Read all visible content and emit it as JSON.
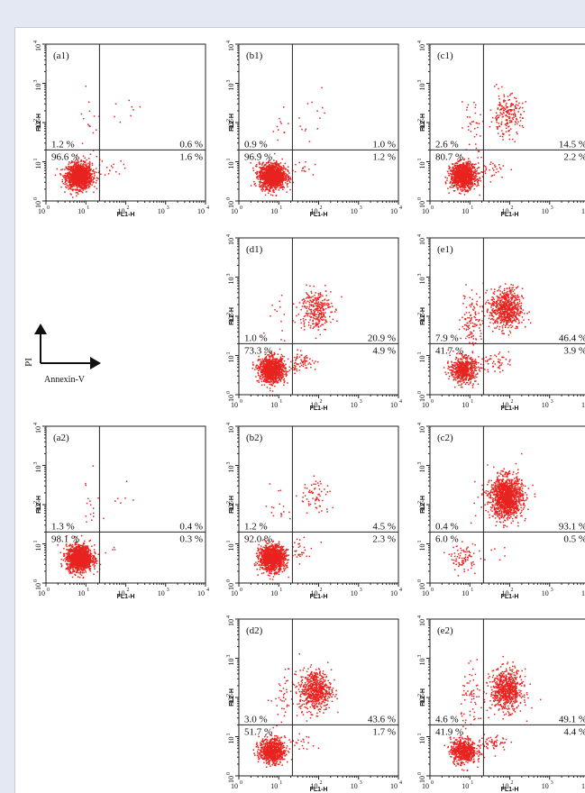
{
  "figure": {
    "x_axis_label": "FL1-H",
    "y_axis_label": "FL2-H",
    "tick_labels": [
      "10",
      "10",
      "10",
      "10",
      "10"
    ],
    "tick_exponents": [
      "0",
      "1",
      "2",
      "3",
      "4"
    ],
    "legend": {
      "y_label": "PI",
      "x_label": "Annexin-V"
    }
  },
  "chart_data": [
    {
      "type": "scatter",
      "title": "(a1)",
      "xlabel": "FL1-H",
      "ylabel": "FL2-H",
      "x_scale": "log",
      "y_scale": "log",
      "xlim": [
        1,
        10000
      ],
      "ylim": [
        1,
        10000
      ],
      "quadrant_gate": [
        22,
        20
      ],
      "quadrant_percentages": {
        "upper_left": "1.2 %",
        "upper_right": "0.6 %",
        "lower_left": "96.6 %",
        "lower_right": "1.6 %"
      },
      "point_color": "#e8231f"
    },
    {
      "type": "scatter",
      "title": "(b1)",
      "xlabel": "FL1-H",
      "ylabel": "FL2-H",
      "x_scale": "log",
      "y_scale": "log",
      "xlim": [
        1,
        10000
      ],
      "ylim": [
        1,
        10000
      ],
      "quadrant_gate": [
        22,
        20
      ],
      "quadrant_percentages": {
        "upper_left": "0.9 %",
        "upper_right": "1.0 %",
        "lower_left": "96.9 %",
        "lower_right": "1.2 %"
      },
      "point_color": "#e8231f"
    },
    {
      "type": "scatter",
      "title": "(c1)",
      "xlabel": "FL1-H",
      "ylabel": "FL2-H",
      "x_scale": "log",
      "y_scale": "log",
      "xlim": [
        1,
        10000
      ],
      "ylim": [
        1,
        10000
      ],
      "quadrant_gate": [
        22,
        20
      ],
      "quadrant_percentages": {
        "upper_left": "2.6 %",
        "upper_right": "14.5 %",
        "lower_left": "80.7 %",
        "lower_right": "2.2 %"
      },
      "point_color": "#e8231f"
    },
    {
      "type": "scatter",
      "title": "(d1)",
      "xlabel": "FL1-H",
      "ylabel": "FL2-H",
      "x_scale": "log",
      "y_scale": "log",
      "xlim": [
        1,
        10000
      ],
      "ylim": [
        1,
        10000
      ],
      "quadrant_gate": [
        22,
        20
      ],
      "quadrant_percentages": {
        "upper_left": "1.0 %",
        "upper_right": "20.9 %",
        "lower_left": "73.3 %",
        "lower_right": "4.9 %"
      },
      "point_color": "#e8231f"
    },
    {
      "type": "scatter",
      "title": "(e1)",
      "xlabel": "FL1-H",
      "ylabel": "FL2-H",
      "x_scale": "log",
      "y_scale": "log",
      "xlim": [
        1,
        10000
      ],
      "ylim": [
        1,
        10000
      ],
      "quadrant_gate": [
        22,
        20
      ],
      "quadrant_percentages": {
        "upper_left": "7.9 %",
        "upper_right": "46.4 %",
        "lower_left": "41.7 %",
        "lower_right": "3.9 %"
      },
      "point_color": "#e8231f"
    },
    {
      "type": "scatter",
      "title": "(a2)",
      "xlabel": "FL1-H",
      "ylabel": "FL2-H",
      "x_scale": "log",
      "y_scale": "log",
      "xlim": [
        1,
        10000
      ],
      "ylim": [
        1,
        10000
      ],
      "quadrant_gate": [
        22,
        20
      ],
      "quadrant_percentages": {
        "upper_left": "1.3 %",
        "upper_right": "0.4 %",
        "lower_left": "98.1 %",
        "lower_right": "0.3 %"
      },
      "point_color": "#e8231f"
    },
    {
      "type": "scatter",
      "title": "(b2)",
      "xlabel": "FL1-H",
      "ylabel": "FL2-H",
      "x_scale": "log",
      "y_scale": "log",
      "xlim": [
        1,
        10000
      ],
      "ylim": [
        1,
        10000
      ],
      "quadrant_gate": [
        22,
        20
      ],
      "quadrant_percentages": {
        "upper_left": "1.2 %",
        "upper_right": "4.5 %",
        "lower_left": "92.0 %",
        "lower_right": "2.3 %"
      },
      "point_color": "#e8231f"
    },
    {
      "type": "scatter",
      "title": "(c2)",
      "xlabel": "FL1-H",
      "ylabel": "FL2-H",
      "x_scale": "log",
      "y_scale": "log",
      "xlim": [
        1,
        10000
      ],
      "ylim": [
        1,
        10000
      ],
      "quadrant_gate": [
        22,
        20
      ],
      "quadrant_percentages": {
        "upper_left": "0.4 %",
        "upper_right": "93.1 %",
        "lower_left": "6.0 %",
        "lower_right": "0.5 %"
      },
      "point_color": "#e8231f"
    },
    {
      "type": "scatter",
      "title": "(d2)",
      "xlabel": "FL1-H",
      "ylabel": "FL2-H",
      "x_scale": "log",
      "y_scale": "log",
      "xlim": [
        1,
        10000
      ],
      "ylim": [
        1,
        10000
      ],
      "quadrant_gate": [
        22,
        20
      ],
      "quadrant_percentages": {
        "upper_left": "3.0 %",
        "upper_right": "43.6 %",
        "lower_left": "51.7 %",
        "lower_right": "1.7 %"
      },
      "point_color": "#e8231f"
    },
    {
      "type": "scatter",
      "title": "(e2)",
      "xlabel": "FL1-H",
      "ylabel": "FL2-H",
      "x_scale": "log",
      "y_scale": "log",
      "xlim": [
        1,
        10000
      ],
      "ylim": [
        1,
        10000
      ],
      "quadrant_gate": [
        22,
        20
      ],
      "quadrant_percentages": {
        "upper_left": "4.6 %",
        "upper_right": "49.1 %",
        "lower_left": "41.9 %",
        "lower_right": "4.4 %"
      },
      "point_color": "#e8231f"
    }
  ]
}
